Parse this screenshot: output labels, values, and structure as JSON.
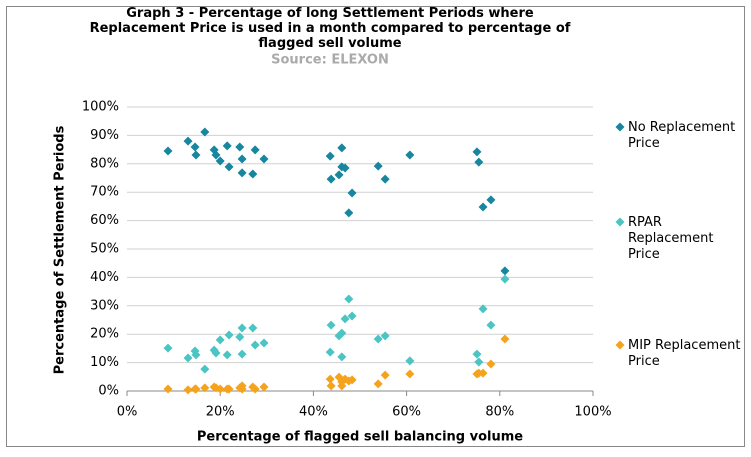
{
  "chart_data": {
    "type": "scatter",
    "title": "Graph 3 - Percentage of long Settlement Periods where Replacement Price is used in a month compared to percentage of flagged sell volume",
    "subtitle": "Source: ELEXON",
    "x_label": "Percentage of flagged sell balancing volume",
    "y_label": "Percentage of Settlement Periods",
    "xlim": [
      0,
      100
    ],
    "xticks": [
      {
        "value": 0,
        "label": "0%"
      },
      {
        "value": 20,
        "label": "20%"
      },
      {
        "value": 40,
        "label": "40%"
      },
      {
        "value": 60,
        "label": "60%"
      },
      {
        "value": 80,
        "label": "80%"
      },
      {
        "value": 100,
        "label": "100%"
      }
    ],
    "ylim": [
      0,
      100
    ],
    "yticks": [
      {
        "value": 0,
        "label": "0%"
      },
      {
        "value": 10,
        "label": "10%"
      },
      {
        "value": 20,
        "label": "20%"
      },
      {
        "value": 30,
        "label": "30%"
      },
      {
        "value": 40,
        "label": "40%"
      },
      {
        "value": 50,
        "label": "50%"
      },
      {
        "value": 60,
        "label": "60%"
      },
      {
        "value": 70,
        "label": "70%"
      },
      {
        "value": 80,
        "label": "80%"
      },
      {
        "value": 90,
        "label": "90%"
      },
      {
        "value": 100,
        "label": "100%"
      }
    ],
    "grid": true,
    "legend": "right",
    "x": [
      8.8,
      13.1,
      14.6,
      14.8,
      16.7,
      18.7,
      19.1,
      20.0,
      21.5,
      21.9,
      24.2,
      24.7,
      24.7,
      27.0,
      27.5,
      29.4,
      43.6,
      43.8,
      45.5,
      46.1,
      46.1,
      46.8,
      47.6,
      48.3,
      53.9,
      55.4,
      60.7,
      75.1,
      75.5,
      76.4,
      78.1,
      81.1
    ],
    "series": [
      {
        "name": "No Replacement Price",
        "color": "#17869e",
        "values": [
          84.5,
          88.0,
          85.9,
          83.1,
          91.2,
          84.9,
          83.1,
          81.0,
          86.3,
          78.9,
          85.9,
          81.7,
          76.8,
          76.4,
          84.9,
          81.7,
          82.7,
          74.6,
          76.1,
          85.6,
          78.9,
          78.5,
          62.7,
          69.7,
          79.2,
          74.6,
          83.1,
          84.2,
          80.6,
          64.8,
          67.3,
          42.3
        ]
      },
      {
        "name": "RPAR Replacement Price",
        "color": "#4cc4c4",
        "values": [
          15.1,
          11.6,
          14.1,
          12.7,
          7.7,
          14.4,
          13.4,
          18.0,
          12.7,
          19.7,
          19.0,
          22.2,
          13.0,
          22.2,
          16.2,
          16.9,
          13.7,
          23.2,
          19.4,
          20.4,
          12.0,
          25.4,
          32.4,
          26.4,
          18.3,
          19.4,
          10.6,
          13.0,
          10.2,
          28.9,
          23.2,
          39.4
        ]
      },
      {
        "name": "MIP Replacement Price",
        "color": "#f5a31c",
        "values": [
          0.7,
          0.4,
          0.7,
          0.7,
          1.1,
          1.4,
          1.1,
          0.7,
          0.7,
          0.7,
          1.1,
          1.8,
          0.7,
          1.4,
          0.7,
          1.4,
          4.2,
          1.8,
          4.9,
          3.2,
          1.8,
          4.2,
          3.5,
          3.9,
          2.5,
          5.6,
          6.0,
          6.0,
          6.3,
          6.3,
          9.5,
          18.3
        ]
      }
    ]
  }
}
